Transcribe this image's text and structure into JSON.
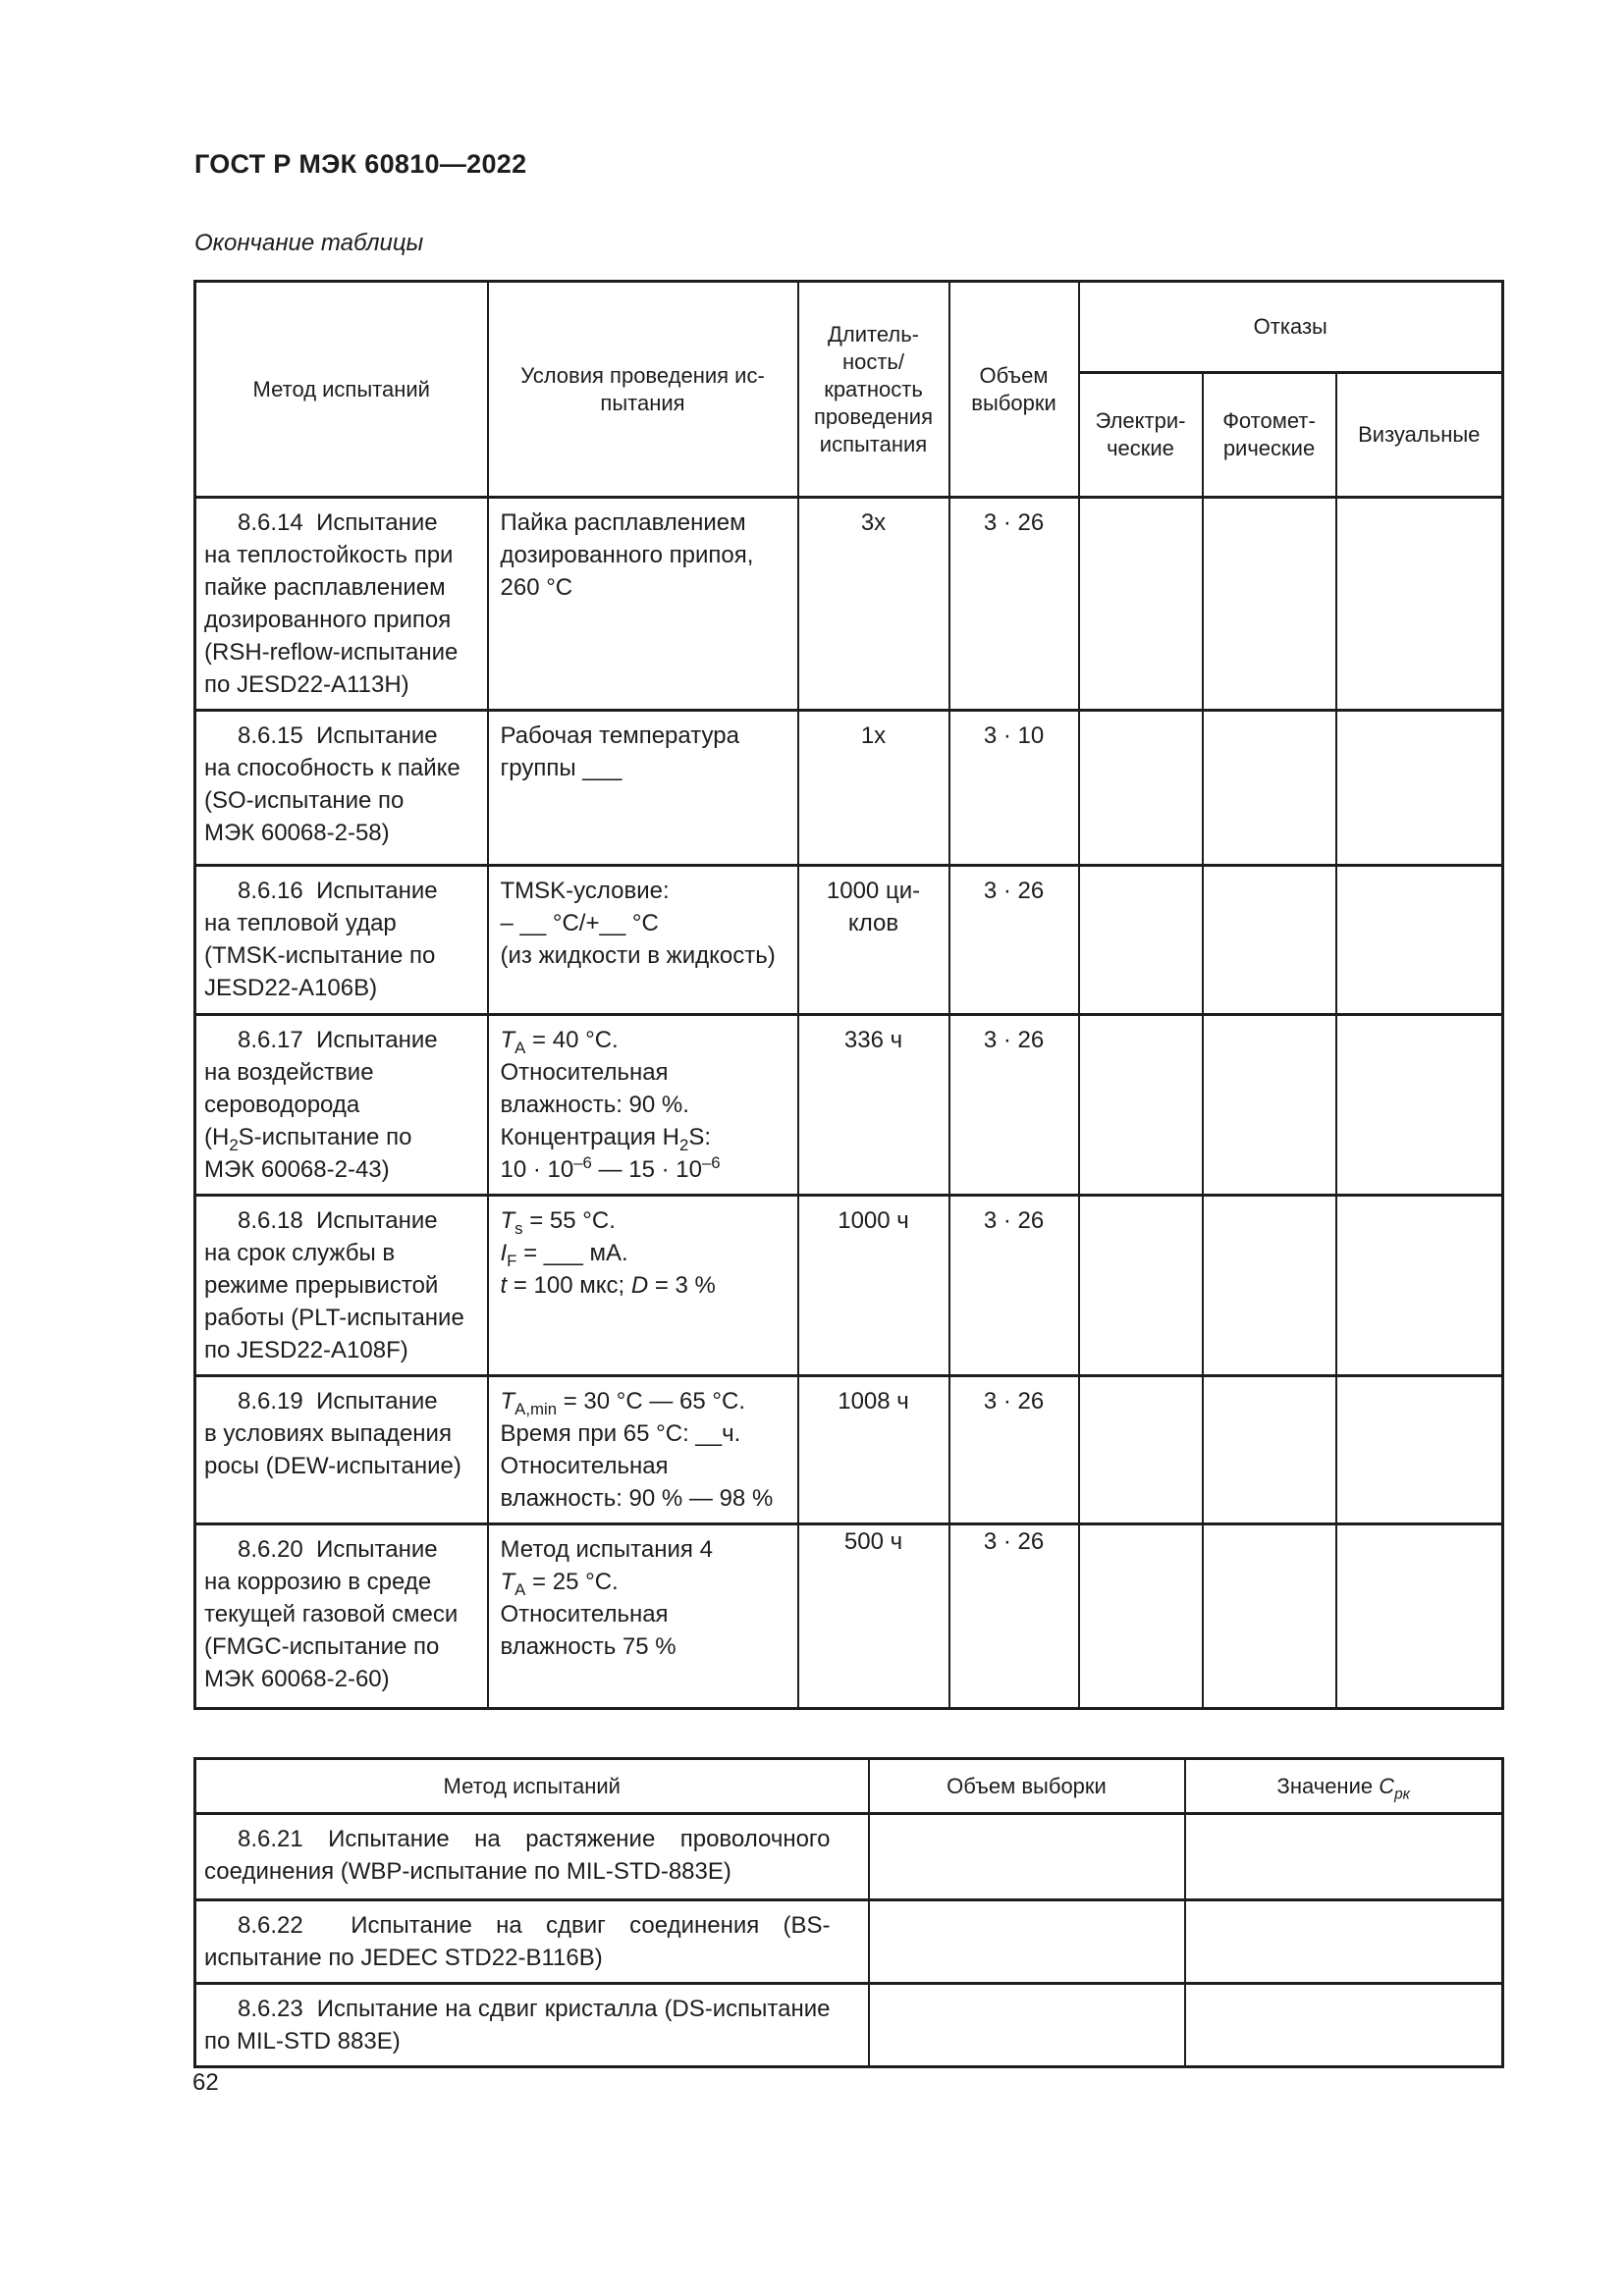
{
  "page": {
    "standard_code": "ГОСТ Р МЭК 60810—2022",
    "table_caption": "Окончание таблицы",
    "page_number": "62"
  },
  "test_table": {
    "headers": {
      "method": "Метод испытаний",
      "conditions_html": "Условия проведения ис-<br>пытания",
      "duration_html": "Длитель-<br>ность/<br>кратность<br>проведения<br>испытания",
      "sample_size_html": "Объем<br>выборки",
      "failures": "Отказы",
      "electrical_html": "Электри-<br>ческие",
      "photometric_html": "Фотомет-<br>рические",
      "visual": "Визуальные"
    },
    "rows": [
      {
        "method_html": "8.6.14&#160; Испытание<br>на теплостойкость при<br>пайке расплавлением<br>дозированного припоя<br>(RSH-reflow-испытание<br>по JESD22-A113H)",
        "conditions_html": "Пайка расплавлением<br>дозированного припоя,<br>260 °C",
        "duration_html": "3x",
        "sample_size": "3 · 26"
      },
      {
        "method_html": "8.6.15&#160; Испытание<br>на способность к пайке<br>(SO-испытание по<br>МЭК 60068-2-58)",
        "conditions_html": "Рабочая температура<br>группы ___",
        "duration_html": "1x",
        "sample_size": "3 · 10"
      },
      {
        "method_html": "8.6.16&#160; Испытание<br>на тепловой удар<br>(TMSK-испытание по<br>JESD22-A106B)",
        "conditions_html": "TMSK-условие:<br>– __ °C/+__ °C<br>(из жидкости в жидкость)",
        "duration_html": "1000 ци-<br>клов",
        "sample_size": "3 · 26"
      },
      {
        "method_html": "8.6.17&#160; Испытание<br>на воздействие<br>сероводорода<br>(H<sub>2</sub>S-испытание по<br>МЭК 60068-2-43)",
        "conditions_html": "<i>T</i><sub>A</sub> = 40 °C.<br>Относительная<br>влажность: 90 %.<br>Концентрация H<sub>2</sub>S:<br>10 · 10<sup>–6</sup> — 15 · 10<sup>–6</sup>",
        "duration_html": "336 ч",
        "sample_size": "3 · 26"
      },
      {
        "method_html": "8.6.18&#160; Испытание<br>на срок службы в<br>режиме прерывистой<br>работы (PLT-испытание<br>по JESD22-A108F)",
        "conditions_html": "<i>T</i><sub>s</sub> = 55 °C.<br><i>I</i><sub>F</sub> = ___ мА.<br><i>t</i> = 100 мкс; <i>D</i> = 3 %",
        "duration_html": "1000 ч",
        "sample_size": "3 · 26"
      },
      {
        "method_html": "8.6.19&#160; Испытание<br>в условиях выпадения<br>росы (DEW-испытание)",
        "conditions_html": "<i>T</i><sub>A,min</sub> = 30 °C — 65 °C.<br>Время при 65 °C: __ч.<br>Относительная<br>влажность: 90 % — 98 %",
        "duration_html": "1008 ч",
        "sample_size": "3 · 26"
      },
      {
        "method_html": "8.6.20&#160; Испытание<br>на коррозию в среде<br>текущей газовой смеси<br>(FMGC-испытание по<br>МЭК 60068-2-60)",
        "conditions_html": "Метод испытания 4<br><i>T</i><sub>A</sub> = 25 °C.<br>Относительная<br>влажность 75 %",
        "duration_html": "500 ч",
        "sample_size": "3 · 26"
      }
    ]
  },
  "summary_table": {
    "headers": {
      "method": "Метод испытаний",
      "sample_size": "Объем выборки",
      "value_html": "Значение <i>C</i><sub><i>рк</i></sub>"
    },
    "rows": [
      {
        "method_html": "8.6.21 Испытание на растяжение проволочного соединения (WBP-испытание по MIL-STD-883E)"
      },
      {
        "method_html": "8.6.22&#160; Испытание на сдвиг соединения (BS-испытание по JEDEC STD22-B116B)"
      },
      {
        "method_html": "8.6.23&#160; Испытание на сдвиг кристалла (DS-испытание по MIL-STD 883E)"
      }
    ]
  }
}
